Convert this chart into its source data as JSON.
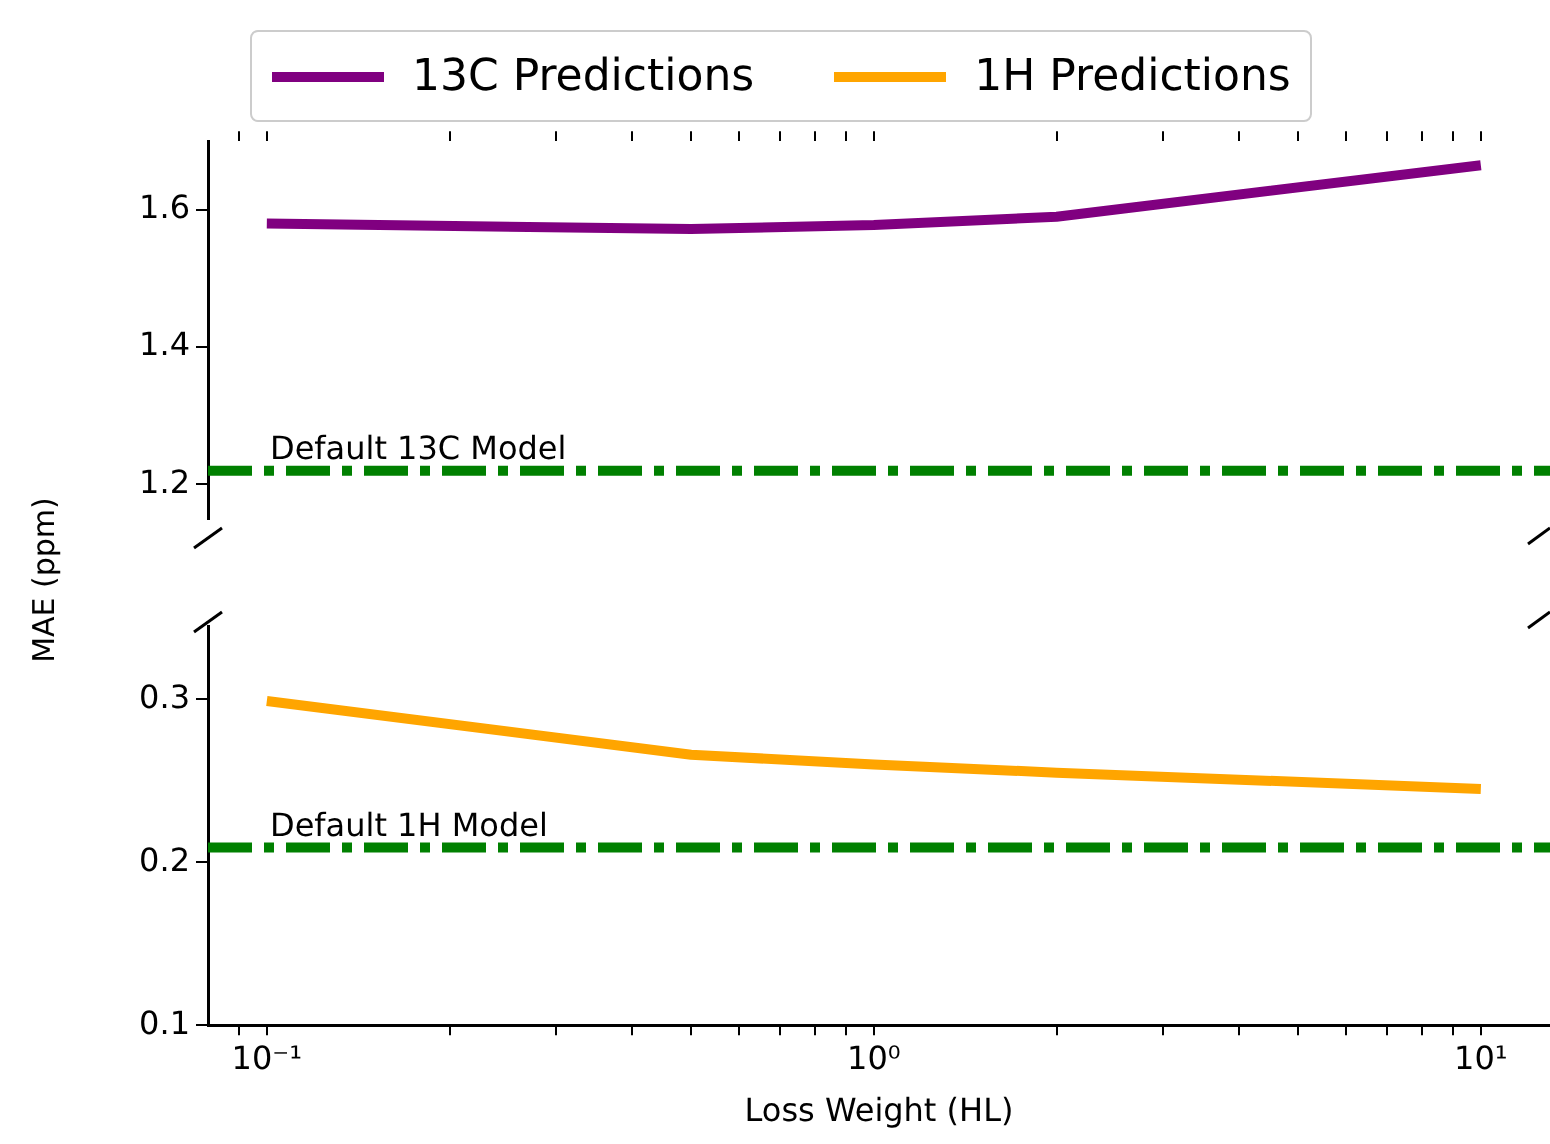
{
  "chart_data": [
    {
      "type": "line",
      "ylabel": "MAE (ppm)",
      "x": [
        0.1,
        0.5,
        1,
        2,
        10
      ],
      "log": "x",
      "legend": "top",
      "tick_labels": "y",
      "xlim": [
        0.08,
        13
      ],
      "ylim": [
        1.15,
        1.7
      ],
      "xticks": [
        {
          "value": 0.09,
          "label": null
        },
        {
          "value": 0.1,
          "label": null
        },
        {
          "value": 0.2,
          "label": null
        },
        {
          "value": 0.3,
          "label": null
        },
        {
          "value": 0.4,
          "label": null
        },
        {
          "value": 0.5,
          "label": null
        },
        {
          "value": 0.6,
          "label": null
        },
        {
          "value": 0.7,
          "label": null
        },
        {
          "value": 0.8,
          "label": null
        },
        {
          "value": 0.9,
          "label": null
        },
        {
          "value": 1,
          "label": null
        },
        {
          "value": 2,
          "label": null
        },
        {
          "value": 3,
          "label": null
        },
        {
          "value": 4,
          "label": null
        },
        {
          "value": 5,
          "label": null
        },
        {
          "value": 6,
          "label": null
        },
        {
          "value": 7,
          "label": null
        },
        {
          "value": 8,
          "label": null
        },
        {
          "value": 9,
          "label": null
        },
        {
          "value": 10,
          "label": null
        }
      ],
      "yticks": [
        1.2,
        1.4,
        1.6
      ],
      "series": [
        {
          "name": "13C Predictions",
          "color": "#800080",
          "values": [
            1.58,
            1.572,
            1.578,
            1.59,
            1.665
          ]
        }
      ],
      "ref_lines": [
        {
          "axis": "y",
          "value": 1.22,
          "label": "Default 13C Model",
          "color": "#008000",
          "line_style": "dashed"
        }
      ]
    },
    {
      "type": "line",
      "xlabel": "Loss Weight (HL)",
      "x": [
        0.1,
        0.5,
        1,
        2,
        10
      ],
      "log": "x",
      "legend": "top",
      "xlim": [
        0.08,
        13
      ],
      "ylim": [
        0.1,
        0.345
      ],
      "xticks": [
        {
          "value": 0.09,
          "label": null
        },
        {
          "value": 0.1,
          "label": "10⁻¹"
        },
        {
          "value": 0.2,
          "label": null
        },
        {
          "value": 0.3,
          "label": null
        },
        {
          "value": 0.4,
          "label": null
        },
        {
          "value": 0.5,
          "label": null
        },
        {
          "value": 0.6,
          "label": null
        },
        {
          "value": 0.7,
          "label": null
        },
        {
          "value": 0.8,
          "label": null
        },
        {
          "value": 0.9,
          "label": null
        },
        {
          "value": 1,
          "label": "10⁰"
        },
        {
          "value": 2,
          "label": null
        },
        {
          "value": 3,
          "label": null
        },
        {
          "value": 4,
          "label": null
        },
        {
          "value": 5,
          "label": null
        },
        {
          "value": 6,
          "label": null
        },
        {
          "value": 7,
          "label": null
        },
        {
          "value": 8,
          "label": null
        },
        {
          "value": 9,
          "label": null
        },
        {
          "value": 10,
          "label": "10¹"
        }
      ],
      "yticks": [
        0.1,
        0.2,
        0.3
      ],
      "series": [
        {
          "name": "1H Predictions",
          "color": "#ffa500",
          "values": [
            0.299,
            0.266,
            0.26,
            0.255,
            0.245
          ]
        }
      ],
      "ref_lines": [
        {
          "axis": "y",
          "value": 0.209,
          "label": "Default 1H Model",
          "color": "#008000",
          "line_style": "dashed"
        }
      ]
    }
  ]
}
